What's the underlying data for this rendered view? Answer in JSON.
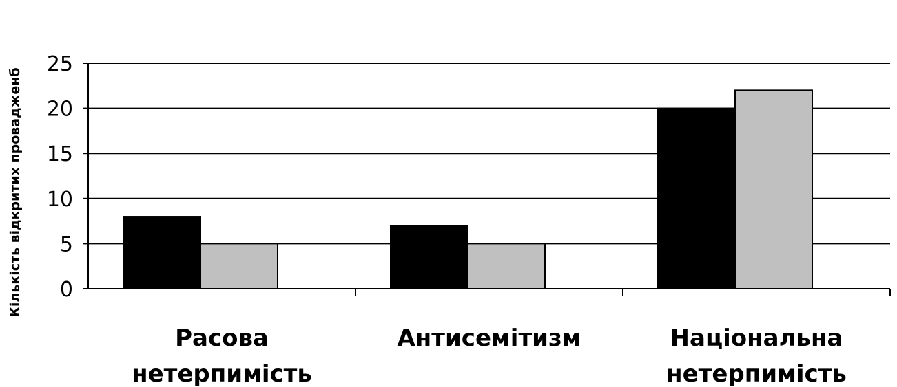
{
  "chart_data": {
    "type": "bar",
    "title": "",
    "xlabel": "",
    "ylabel": "Кількість відкритих провадженб",
    "ylim": [
      0,
      25
    ],
    "yticks": [
      0,
      5,
      10,
      15,
      20,
      25
    ],
    "grid": true,
    "legend": "none",
    "categories": [
      [
        "Расова",
        "нетерпимість"
      ],
      [
        "Антисемітизм"
      ],
      [
        "Національна",
        "нетерпимість"
      ]
    ],
    "series": [
      {
        "values": [
          8,
          7,
          20
        ],
        "color": "#000000"
      },
      {
        "values": [
          5,
          5,
          22
        ],
        "color": "#c0c0c0"
      }
    ]
  }
}
